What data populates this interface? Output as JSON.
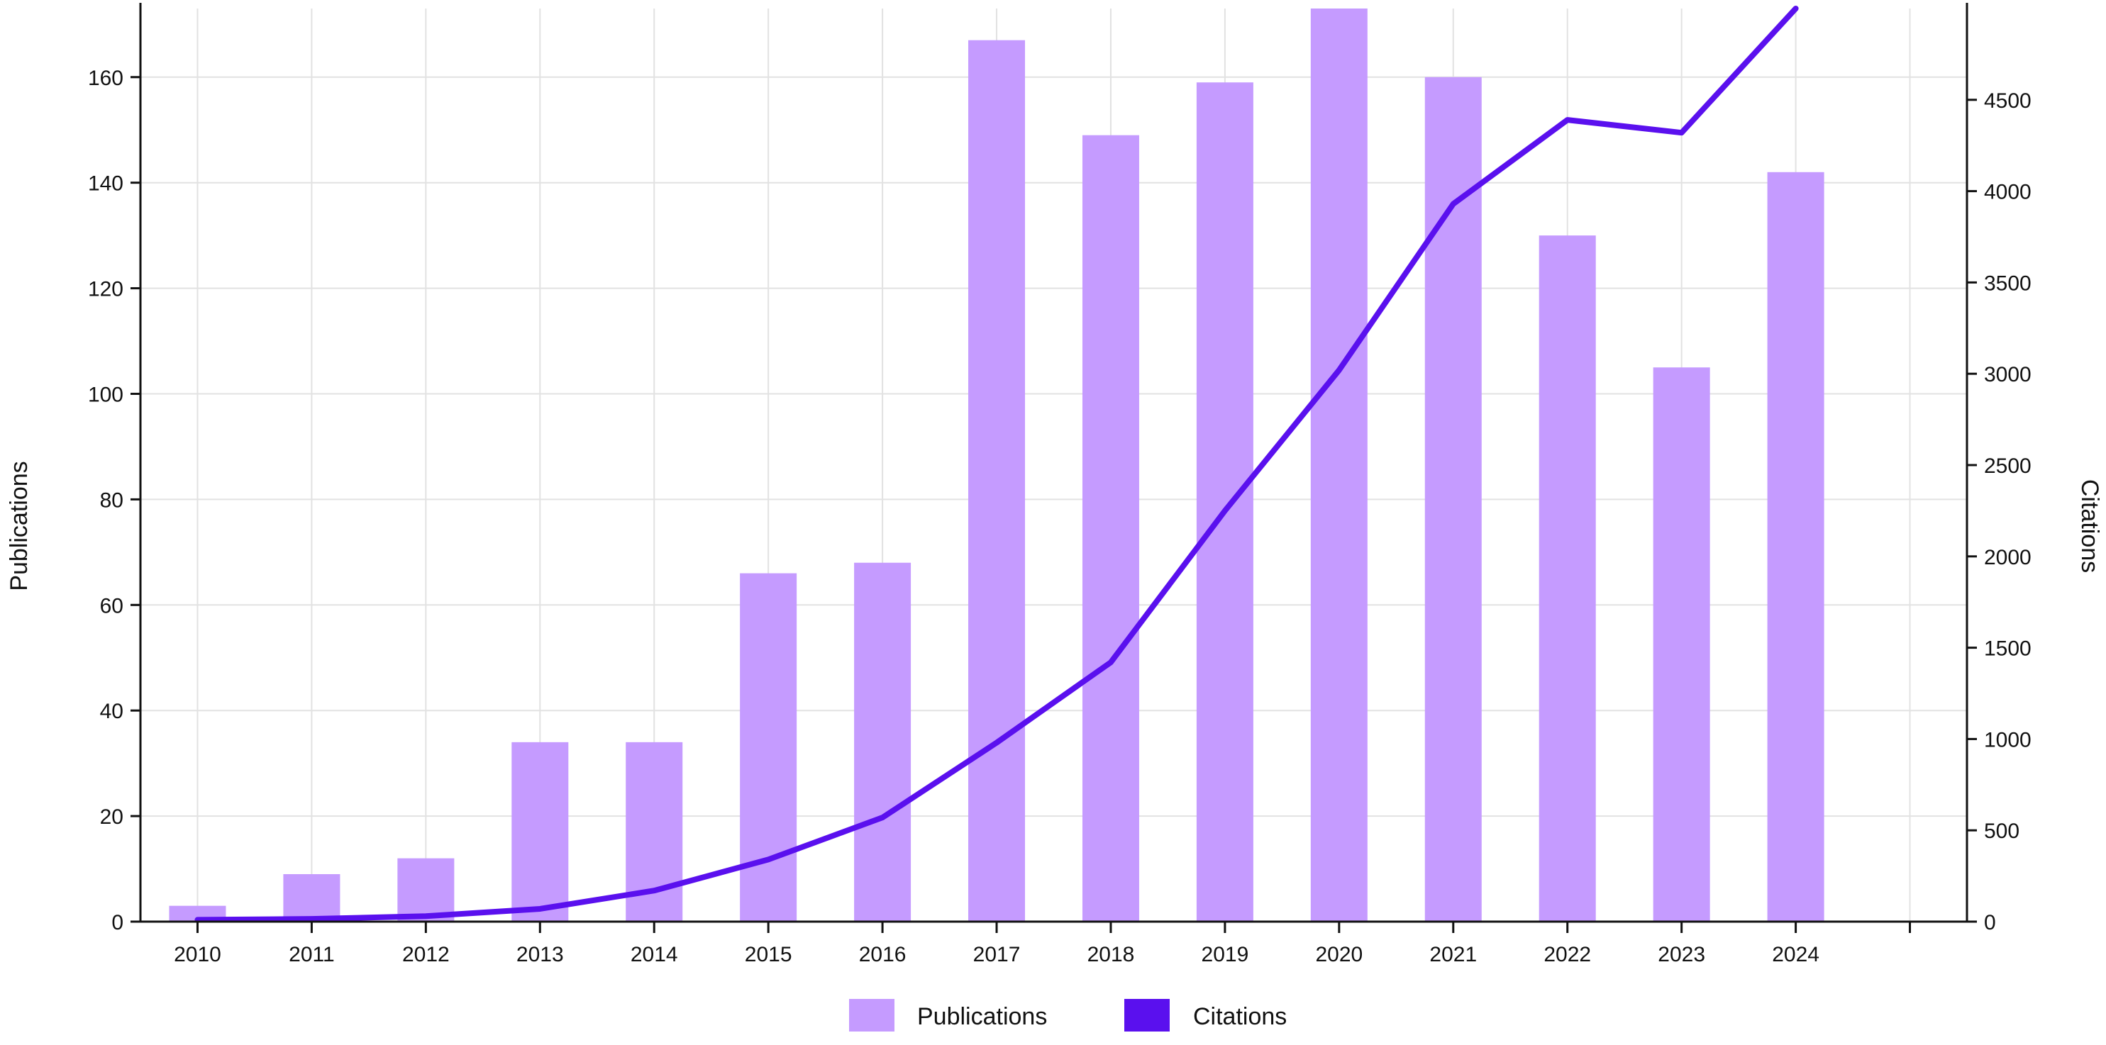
{
  "chart_data": {
    "type": "bar",
    "categories": [
      "2010",
      "2011",
      "2012",
      "2013",
      "2014",
      "2015",
      "2016",
      "2017",
      "2018",
      "2019",
      "2020",
      "2021",
      "2022",
      "2023",
      "2024"
    ],
    "series": [
      {
        "name": "Publications",
        "type": "bar",
        "axis": "left",
        "color": "#c59bff",
        "values": [
          3,
          9,
          12,
          34,
          34,
          66,
          68,
          167,
          149,
          159,
          173,
          160,
          130,
          105,
          142
        ]
      },
      {
        "name": "Citations",
        "type": "line",
        "axis": "right",
        "color": "#5a10ee",
        "values": [
          10,
          15,
          30,
          70,
          170,
          340,
          570,
          980,
          1420,
          2250,
          3020,
          3930,
          4390,
          4320,
          5000
        ]
      }
    ],
    "ylabel": "Publications",
    "y2label": "Citations",
    "ylim": [
      0,
      173
    ],
    "y2lim": [
      0,
      5000
    ],
    "yticks": [
      0,
      20,
      40,
      60,
      80,
      100,
      120,
      140,
      160
    ],
    "y2ticks": [
      0,
      500,
      1000,
      1500,
      2000,
      2500,
      3000,
      3500,
      4000,
      4500
    ],
    "grid": true,
    "legend": {
      "position": "bottom",
      "items": [
        {
          "label": "Publications",
          "color": "#c59bff"
        },
        {
          "label": "Citations",
          "color": "#5a10ee"
        }
      ]
    }
  }
}
